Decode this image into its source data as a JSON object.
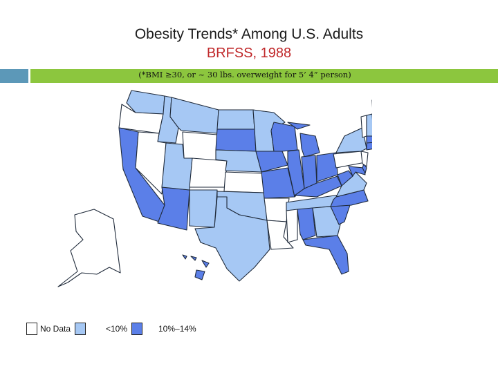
{
  "title": "Obesity Trends* Among U.S. Adults",
  "subtitle": "BRFSS, 1988",
  "footnote": "(*BMI ≥30, or ~ 30 lbs. overweight for 5’ 4” person)",
  "colors": {
    "title": "#1a1a1a",
    "subtitle": "#c0282a",
    "no_data": "#ffffff",
    "lt10": "#a6c8f4",
    "pct10_14": "#5b7fe8",
    "border": "#1f2a3a",
    "bar_left": "#5c98b8",
    "bar_right": "#8cc63e"
  },
  "legend": [
    {
      "label": "No Data",
      "category": "no_data"
    },
    {
      "label": "<10%",
      "category": "lt10"
    },
    {
      "label": "10%–14%",
      "category": "pct10_14"
    }
  ],
  "states": {
    "WA": "lt10",
    "OR": "no_data",
    "CA": "pct10_14",
    "ID": "lt10",
    "NV": "no_data",
    "AZ": "pct10_14",
    "MT": "lt10",
    "WY": "no_data",
    "UT": "lt10",
    "CO": "no_data",
    "NM": "lt10",
    "ND": "lt10",
    "SD": "pct10_14",
    "NE": "lt10",
    "KS": "no_data",
    "OK": "lt10",
    "TX": "lt10",
    "MN": "lt10",
    "IA": "pct10_14",
    "MO": "pct10_14",
    "AR": "no_data",
    "LA": "no_data",
    "WI": "pct10_14",
    "IL": "pct10_14",
    "MI": "pct10_14",
    "IN": "pct10_14",
    "OH": "pct10_14",
    "KY": "pct10_14",
    "TN": "lt10",
    "MS": "no_data",
    "AL": "pct10_14",
    "GA": "lt10",
    "FL": "pct10_14",
    "SC": "pct10_14",
    "NC": "pct10_14",
    "VA": "lt10",
    "WV": "pct10_14",
    "MD": "pct10_14",
    "DE": "pct10_14",
    "PA": "no_data",
    "NJ": "no_data",
    "NY": "lt10",
    "CT": "pct10_14",
    "RI": "pct10_14",
    "MA": "pct10_14",
    "VT": "no_data",
    "NH": "lt10",
    "ME": "pct10_14",
    "AK": "no_data",
    "HI": "pct10_14"
  }
}
